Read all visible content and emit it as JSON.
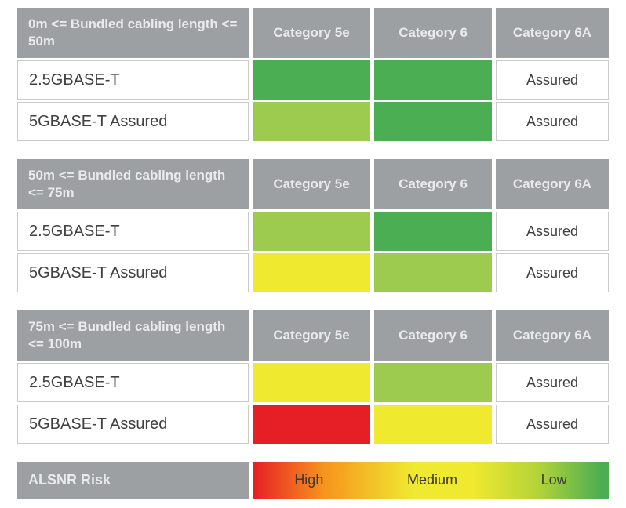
{
  "columns": [
    "Category 5e",
    "Category 6",
    "Category 6A"
  ],
  "tables": [
    {
      "title": "0m <= Bundled cabling length <= 50m",
      "rows": [
        {
          "label": "2.5GBASE-T",
          "cells": [
            {
              "color": "#4bae52"
            },
            {
              "color": "#4bae52"
            },
            {
              "text": "Assured"
            }
          ]
        },
        {
          "label": "5GBASE-T Assured",
          "cells": [
            {
              "color": "#9dcb50"
            },
            {
              "color": "#4bae52"
            },
            {
              "text": "Assured"
            }
          ]
        }
      ]
    },
    {
      "title": "50m <= Bundled cabling length <= 75m",
      "rows": [
        {
          "label": "2.5GBASE-T",
          "cells": [
            {
              "color": "#9dcb50"
            },
            {
              "color": "#4bae52"
            },
            {
              "text": "Assured"
            }
          ]
        },
        {
          "label": "5GBASE-T Assured",
          "cells": [
            {
              "color": "#efe930"
            },
            {
              "color": "#9dcb50"
            },
            {
              "text": "Assured"
            }
          ]
        }
      ]
    },
    {
      "title": "75m <= Bundled cabling length <= 100m",
      "rows": [
        {
          "label": "2.5GBASE-T",
          "cells": [
            {
              "color": "#efe930"
            },
            {
              "color": "#9dcb50"
            },
            {
              "text": "Assured"
            }
          ]
        },
        {
          "label": "5GBASE-T Assured",
          "cells": [
            {
              "color": "#e61e25"
            },
            {
              "color": "#efe930"
            },
            {
              "text": "Assured"
            }
          ]
        }
      ]
    }
  ],
  "legend": {
    "label": "ALSNR Risk",
    "levels": [
      "High",
      "Medium",
      "Low"
    ],
    "gradient": "linear-gradient(to right, #e61e25 0%, #f7941d 20%, #efe930 45%, #efe930 62%, #b5d338 80%, #4bae52 98%)"
  },
  "colors": {
    "header_gray": "#9da0a3",
    "header_text": "#e9eaeb",
    "risk_low_green": "#4bae52",
    "risk_medium_low_green": "#9dcb50",
    "risk_medium_yellow": "#efe930",
    "risk_high_red": "#e61e25",
    "cell_border": "#c9cacb",
    "label_text": "#414042"
  },
  "chart_data": [
    {
      "type": "heatmap",
      "title": "0m <= Bundled cabling length <= 50m",
      "categories": [
        "Category 5e",
        "Category 6",
        "Category 6A"
      ],
      "rows": [
        "2.5GBASE-T",
        "5GBASE-T Assured"
      ],
      "values": [
        [
          "Low",
          "Low",
          "Assured"
        ],
        [
          "Medium-Low",
          "Low",
          "Assured"
        ]
      ]
    },
    {
      "type": "heatmap",
      "title": "50m <= Bundled cabling length <= 75m",
      "categories": [
        "Category 5e",
        "Category 6",
        "Category 6A"
      ],
      "rows": [
        "2.5GBASE-T",
        "5GBASE-T Assured"
      ],
      "values": [
        [
          "Medium-Low",
          "Low",
          "Assured"
        ],
        [
          "Medium",
          "Medium-Low",
          "Assured"
        ]
      ]
    },
    {
      "type": "heatmap",
      "title": "75m <= Bundled cabling length <= 100m",
      "categories": [
        "Category 5e",
        "Category 6",
        "Category 6A"
      ],
      "rows": [
        "2.5GBASE-T",
        "5GBASE-T Assured"
      ],
      "values": [
        [
          "Medium",
          "Medium-Low",
          "Assured"
        ],
        [
          "High",
          "Medium",
          "Assured"
        ]
      ]
    },
    {
      "type": "legend",
      "title": "ALSNR Risk",
      "scale": [
        "High",
        "Medium",
        "Low"
      ],
      "scale_colors": [
        "#e61e25",
        "#efe930",
        "#4bae52"
      ]
    }
  ]
}
